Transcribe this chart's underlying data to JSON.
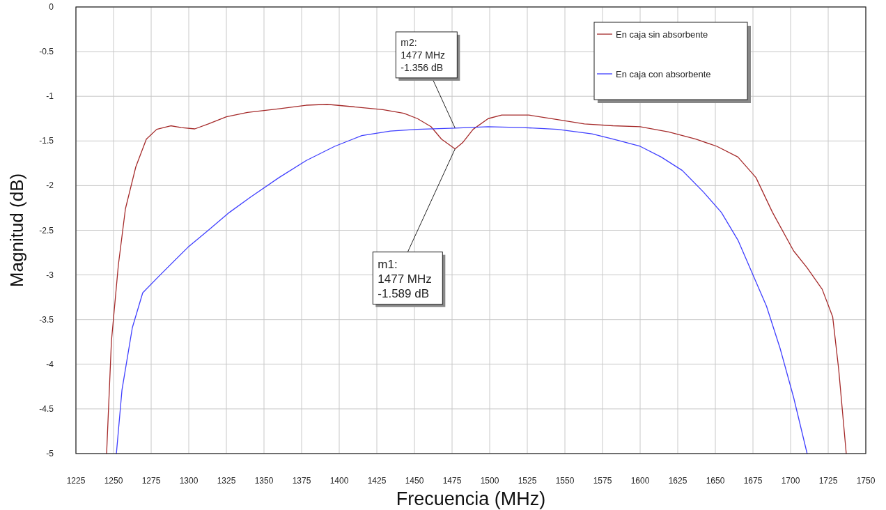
{
  "chart_data": {
    "type": "line",
    "xlabel": "Frecuencia (MHz)",
    "ylabel": "Magnitud (dB)",
    "xlim": [
      1225,
      1750
    ],
    "xticks": [
      1225,
      1250,
      1275,
      1300,
      1325,
      1350,
      1375,
      1400,
      1425,
      1450,
      1475,
      1500,
      1525,
      1550,
      1575,
      1600,
      1625,
      1650,
      1675,
      1700,
      1725,
      1750
    ],
    "ylim": [
      -5,
      0
    ],
    "yticks": [
      {
        "value": -5,
        "label": "-5"
      },
      {
        "value": -4.5,
        "label": "-4.5"
      },
      {
        "value": -4,
        "label": "-4"
      },
      {
        "value": -3.5,
        "label": "-3.5"
      },
      {
        "value": -3,
        "label": "-3"
      },
      {
        "value": -2.5,
        "label": "-2.5"
      },
      {
        "value": -2,
        "label": "-2"
      },
      {
        "value": -1.5,
        "label": "-1.5"
      },
      {
        "value": -1,
        "label": "-1"
      },
      {
        "value": -0.5,
        "label": "-0.5"
      },
      {
        "value": 0,
        "label": "0"
      }
    ],
    "grid": true,
    "legend": "top right",
    "marker": "none",
    "line_style": "solid",
    "series": [
      {
        "name": "En caja sin absorbente",
        "color": "#a52a2a",
        "x": [
          1245.4,
          1248.6,
          1253.2,
          1257.9,
          1264.8,
          1271.8,
          1278.7,
          1288,
          1295,
          1304,
          1313,
          1325,
          1339,
          1360,
          1378,
          1392,
          1411,
          1429,
          1443,
          1452,
          1461,
          1468,
          1477,
          1482,
          1489,
          1499,
          1508,
          1526,
          1545,
          1563,
          1582,
          1600,
          1619,
          1637,
          1651,
          1665,
          1677,
          1688,
          1702,
          1711,
          1721,
          1728,
          1732,
          1737
        ],
        "values": [
          -5,
          -3.74,
          -2.89,
          -2.26,
          -1.79,
          -1.48,
          -1.37,
          -1.33,
          -1.35,
          -1.365,
          -1.31,
          -1.23,
          -1.18,
          -1.14,
          -1.1,
          -1.09,
          -1.12,
          -1.15,
          -1.19,
          -1.25,
          -1.34,
          -1.48,
          -1.589,
          -1.52,
          -1.37,
          -1.25,
          -1.21,
          -1.21,
          -1.26,
          -1.31,
          -1.33,
          -1.34,
          -1.4,
          -1.48,
          -1.56,
          -1.68,
          -1.91,
          -2.3,
          -2.73,
          -2.92,
          -3.16,
          -3.47,
          -4.06,
          -5
        ]
      },
      {
        "name": "En caja con absorbente",
        "color": "#3f3fff",
        "x": [
          1251.9,
          1255.6,
          1262.5,
          1269.4,
          1281,
          1299.5,
          1313,
          1327,
          1341,
          1360,
          1378,
          1397,
          1415,
          1434,
          1452,
          1477,
          1499,
          1522,
          1545,
          1568,
          1582,
          1600,
          1614,
          1628,
          1642,
          1654,
          1665,
          1674,
          1684,
          1693,
          1702,
          1711
        ],
        "values": [
          -5,
          -4.29,
          -3.59,
          -3.2,
          -3,
          -2.69,
          -2.5,
          -2.3,
          -2.13,
          -1.91,
          -1.72,
          -1.56,
          -1.44,
          -1.39,
          -1.37,
          -1.356,
          -1.34,
          -1.35,
          -1.37,
          -1.42,
          -1.48,
          -1.56,
          -1.68,
          -1.83,
          -2.07,
          -2.3,
          -2.61,
          -2.96,
          -3.35,
          -3.82,
          -4.37,
          -5
        ]
      }
    ],
    "annotations": [
      {
        "text": "m1:\n1477 MHz\n-1.589 dB",
        "x": 1477,
        "y": -1.589
      },
      {
        "text": "m2:\n1477 MHz\n-1.356 dB",
        "x": 1477,
        "y": -1.356
      }
    ]
  }
}
